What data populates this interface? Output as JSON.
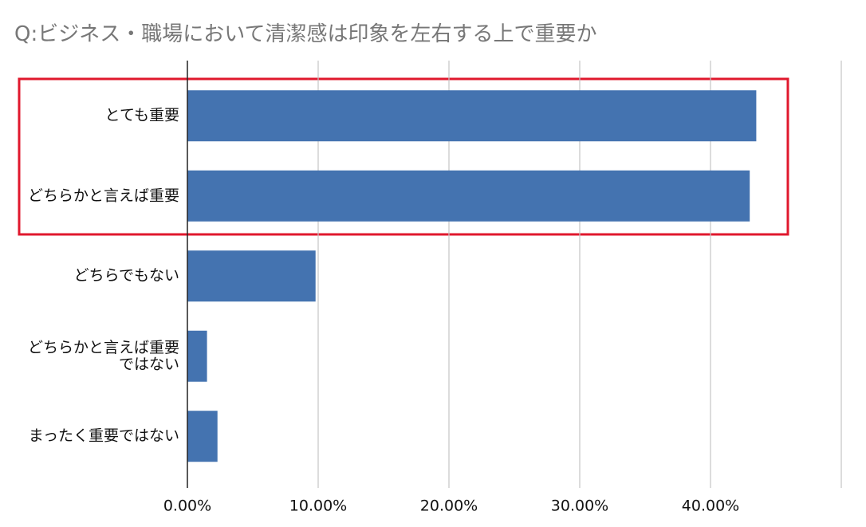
{
  "chart_data": {
    "type": "bar",
    "orientation": "horizontal",
    "title": "Q:ビジネス・職場において清潔感は印象を左右する上で重要か",
    "categories": [
      "とても重要",
      "どちらかと言えば重要",
      "どちらでもない",
      "どちらかと言えば重要ではない",
      "まったく重要ではない"
    ],
    "values": [
      43.5,
      43.0,
      9.8,
      1.5,
      2.3
    ],
    "color": "#4473b0",
    "xlim": [
      0,
      50
    ],
    "xticks": [
      {
        "value": 0,
        "label": "0.00%"
      },
      {
        "value": 10,
        "label": "10.00%"
      },
      {
        "value": 20,
        "label": "20.00%"
      },
      {
        "value": 30,
        "label": "30.00%"
      },
      {
        "value": 40,
        "label": "40.00%"
      }
    ],
    "grid": true
  }
}
